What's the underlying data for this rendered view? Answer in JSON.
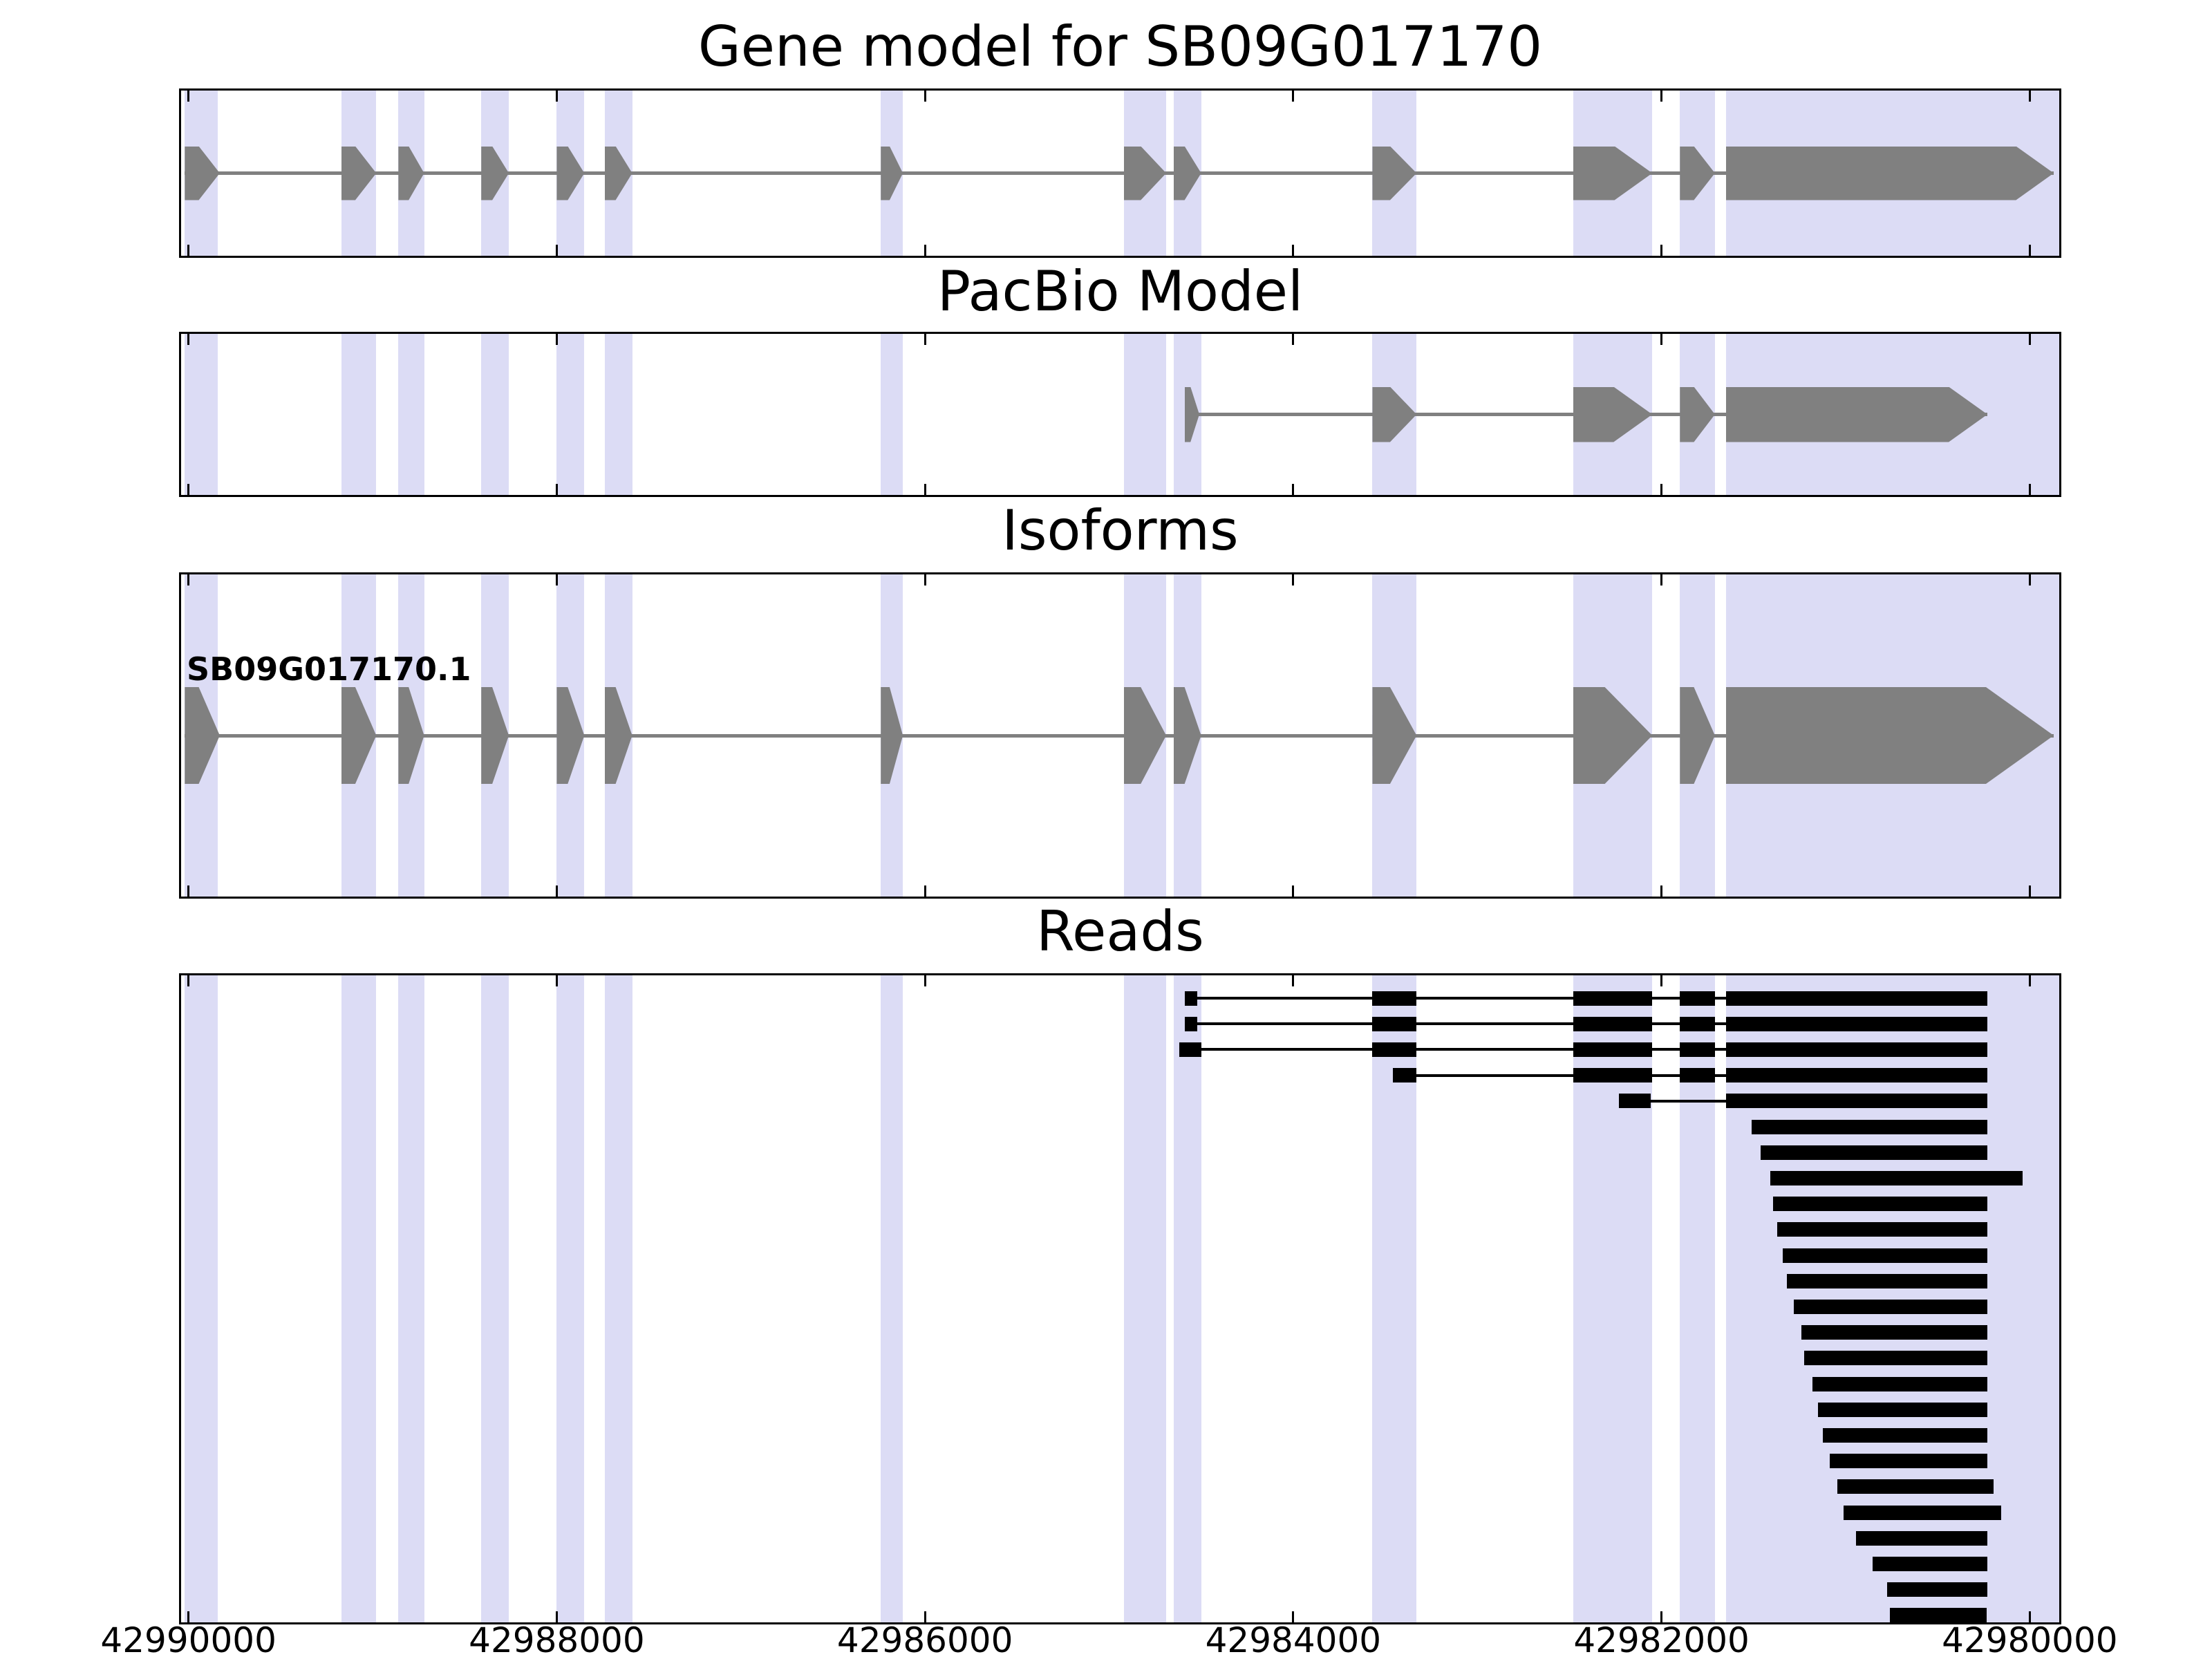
{
  "chart_data": {
    "type": "genomic-tracks",
    "x_axis": {
      "domain": [
        42990040,
        42979840
      ],
      "direction": "decreasing-rightward",
      "tick_values": [
        42990000,
        42988000,
        42986000,
        42984000,
        42982000,
        42980000
      ],
      "tick_labels": [
        "42990000",
        "42988000",
        "42986000",
        "42984000",
        "42982000",
        "42980000"
      ]
    },
    "colors": {
      "exon": "#808080",
      "intron_line": "#808080",
      "read": "#000000",
      "highlight_band": "#dcdcf5",
      "panel_border": "#000000",
      "background": "#ffffff"
    },
    "highlight_regions": [
      [
        42990020,
        42989840
      ],
      [
        42989170,
        42988980
      ],
      [
        42988860,
        42988720
      ],
      [
        42988410,
        42988260
      ],
      [
        42988000,
        42987850
      ],
      [
        42987740,
        42987590
      ],
      [
        42986240,
        42986120
      ],
      [
        42984920,
        42984690
      ],
      [
        42984650,
        42984500
      ],
      [
        42983570,
        42983330
      ],
      [
        42982480,
        42982050
      ],
      [
        42981900,
        42981710
      ],
      [
        42981650,
        42979840
      ]
    ],
    "tracks": [
      {
        "id": "gene-model",
        "title": "Gene model for SB09G017170",
        "exons": [
          [
            42990020,
            42989830
          ],
          [
            42989170,
            42988980
          ],
          [
            42988860,
            42988720
          ],
          [
            42988410,
            42988260
          ],
          [
            42988000,
            42987850
          ],
          [
            42987740,
            42987590
          ],
          [
            42986240,
            42986120
          ],
          [
            42984920,
            42984690
          ],
          [
            42984650,
            42984500
          ],
          [
            42983570,
            42983330
          ],
          [
            42982480,
            42982050
          ],
          [
            42981900,
            42981710
          ],
          [
            42981650,
            42979870
          ]
        ]
      },
      {
        "id": "pacbio-model",
        "title": "PacBio Model",
        "exons": [
          [
            42984590,
            42984510
          ],
          [
            42983570,
            42983330
          ],
          [
            42982480,
            42982050
          ],
          [
            42981900,
            42981710
          ],
          [
            42981650,
            42980230
          ]
        ]
      },
      {
        "id": "isoforms",
        "title": "Isoforms",
        "isoforms": [
          {
            "name": "SB09G017170.1",
            "exons": [
              [
                42990020,
                42989830
              ],
              [
                42989170,
                42988980
              ],
              [
                42988860,
                42988720
              ],
              [
                42988410,
                42988260
              ],
              [
                42988000,
                42987850
              ],
              [
                42987740,
                42987590
              ],
              [
                42986240,
                42986120
              ],
              [
                42984920,
                42984690
              ],
              [
                42984650,
                42984500
              ],
              [
                42983570,
                42983330
              ],
              [
                42982480,
                42982050
              ],
              [
                42981900,
                42981710
              ],
              [
                42981650,
                42979870
              ]
            ]
          }
        ]
      },
      {
        "id": "reads",
        "title": "Reads",
        "reads": [
          {
            "blocks": [
              [
                42984590,
                42984520
              ],
              [
                42983570,
                42983330
              ],
              [
                42982480,
                42982050
              ],
              [
                42981900,
                42981710
              ],
              [
                42981650,
                42980230
              ]
            ]
          },
          {
            "blocks": [
              [
                42984590,
                42984520
              ],
              [
                42983570,
                42983330
              ],
              [
                42982480,
                42982050
              ],
              [
                42981900,
                42981710
              ],
              [
                42981650,
                42980230
              ]
            ]
          },
          {
            "blocks": [
              [
                42984620,
                42984500
              ],
              [
                42983570,
                42983330
              ],
              [
                42982480,
                42982050
              ],
              [
                42981900,
                42981710
              ],
              [
                42981650,
                42980230
              ]
            ]
          },
          {
            "blocks": [
              [
                42983460,
                42983330
              ],
              [
                42982480,
                42982050
              ],
              [
                42981900,
                42981710
              ],
              [
                42981650,
                42980230
              ]
            ]
          },
          {
            "blocks": [
              [
                42982230,
                42982060
              ],
              [
                42981650,
                42980230
              ]
            ]
          },
          {
            "blocks": [
              [
                42981510,
                42980230
              ]
            ]
          },
          {
            "blocks": [
              [
                42981460,
                42980230
              ]
            ]
          },
          {
            "blocks": [
              [
                42981410,
                42980040
              ]
            ]
          },
          {
            "blocks": [
              [
                42981395,
                42980230
              ]
            ]
          },
          {
            "blocks": [
              [
                42981370,
                42980230
              ]
            ]
          },
          {
            "blocks": [
              [
                42981340,
                42980230
              ]
            ]
          },
          {
            "blocks": [
              [
                42981320,
                42980230
              ]
            ]
          },
          {
            "blocks": [
              [
                42981280,
                42980230
              ]
            ]
          },
          {
            "blocks": [
              [
                42981240,
                42980230
              ]
            ]
          },
          {
            "blocks": [
              [
                42981225,
                42980230
              ]
            ]
          },
          {
            "blocks": [
              [
                42981180,
                42980230
              ]
            ]
          },
          {
            "blocks": [
              [
                42981150,
                42980230
              ]
            ]
          },
          {
            "blocks": [
              [
                42981125,
                42980230
              ]
            ]
          },
          {
            "blocks": [
              [
                42981085,
                42980230
              ]
            ]
          },
          {
            "blocks": [
              [
                42981045,
                42980195
              ]
            ]
          },
          {
            "blocks": [
              [
                42981010,
                42980155
              ]
            ]
          },
          {
            "blocks": [
              [
                42980945,
                42980230
              ]
            ]
          },
          {
            "blocks": [
              [
                42980855,
                42980230
              ]
            ]
          },
          {
            "blocks": [
              [
                42980775,
                42980230
              ]
            ]
          },
          {
            "blocks": [
              [
                42980760,
                42980235
              ]
            ]
          }
        ]
      }
    ]
  }
}
